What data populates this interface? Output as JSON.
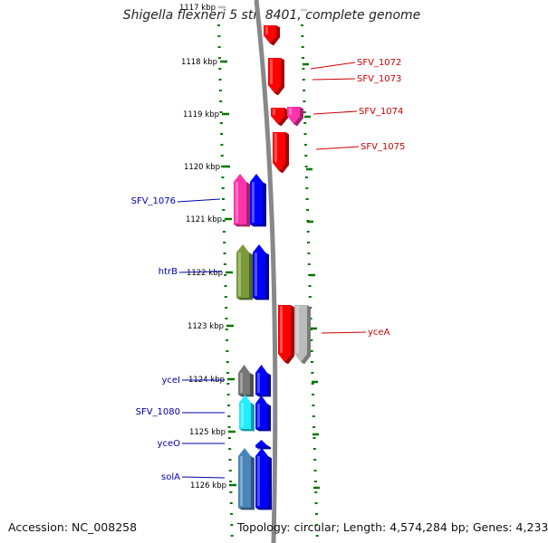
{
  "title": "Shigella flexneri 5 str. 8401, complete genome",
  "footer": {
    "accession": "Accession: NC_008258",
    "summary": "Topology: circular; Length: 4,574,284 bp; Genes: 4,233"
  },
  "colors": {
    "forward_label": "#cc0000",
    "reverse_label": "#0000aa",
    "scale_ticks": "#007700",
    "backbone": "#888888"
  },
  "kbp_ticks": [
    {
      "label": "1117 kbp",
      "faded": true
    },
    {
      "label": "1118 kbp"
    },
    {
      "label": "1119 kbp"
    },
    {
      "label": "1120 kbp"
    },
    {
      "label": "1121 kbp"
    },
    {
      "label": "1122 kbp"
    },
    {
      "label": "1123 kbp"
    },
    {
      "label": "1124 kbp"
    },
    {
      "label": "1125 kbp"
    },
    {
      "label": "1126 kbp"
    }
  ],
  "genes": [
    {
      "label": "",
      "strand": "forward",
      "color": "#ff0000"
    },
    {
      "label": "SFV_1072",
      "strand": "forward",
      "color": "#ff0000"
    },
    {
      "label": "SFV_1073",
      "strand": "forward",
      "color": "#ff0000"
    },
    {
      "label": "SFV_1074",
      "strand": "forward",
      "color": "#ff0000"
    },
    {
      "label": "",
      "strand": "forward",
      "color": "#ff33aa"
    },
    {
      "label": "SFV_1075",
      "strand": "forward",
      "color": "#ff0000"
    },
    {
      "label": "SFV_1076",
      "strand": "reverse",
      "color": "#ff33aa"
    },
    {
      "label": "",
      "strand": "reverse",
      "color": "#0000ff"
    },
    {
      "label": "htrB",
      "strand": "reverse",
      "color": "#7a9a3a"
    },
    {
      "label": "",
      "strand": "reverse",
      "color": "#0000ff"
    },
    {
      "label": "yceA",
      "strand": "forward",
      "color": "#ff0000"
    },
    {
      "label": "",
      "strand": "forward",
      "color": "#bbbbbb"
    },
    {
      "label": "yceI",
      "strand": "reverse",
      "color": "#777777"
    },
    {
      "label": "",
      "strand": "reverse",
      "color": "#0000ff"
    },
    {
      "label": "SFV_1080",
      "strand": "reverse",
      "color": "#22eeff"
    },
    {
      "label": "",
      "strand": "reverse",
      "color": "#0000ff"
    },
    {
      "label": "yceO",
      "strand": "reverse",
      "color": "#0000ff"
    },
    {
      "label": "solA",
      "strand": "reverse",
      "color": "#4a86b8"
    },
    {
      "label": "",
      "strand": "reverse",
      "color": "#0000ff"
    }
  ]
}
